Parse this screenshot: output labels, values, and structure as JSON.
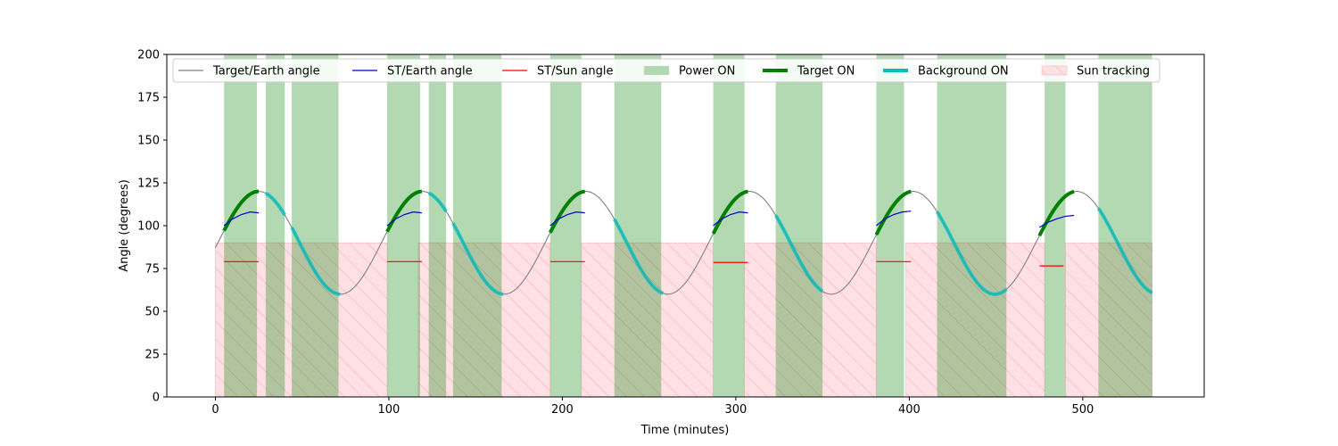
{
  "chart_data": {
    "type": "line",
    "title": "",
    "xlabel": "Time (minutes)",
    "ylabel": "Angle (degrees)",
    "xlim": [
      -28,
      570
    ],
    "ylim": [
      0,
      200
    ],
    "x_ticks": [
      0,
      100,
      200,
      300,
      400,
      500
    ],
    "y_ticks": [
      0,
      25,
      50,
      75,
      100,
      125,
      150,
      175,
      200
    ],
    "legend_position": "top",
    "grid": false,
    "legend": [
      {
        "label": "Target/Earth angle",
        "kind": "line",
        "color": "#808080"
      },
      {
        "label": "ST/Earth angle",
        "kind": "line",
        "color": "#0000cc"
      },
      {
        "label": "ST/Sun angle",
        "kind": "line",
        "color": "#ff0000"
      },
      {
        "label": "Power ON",
        "kind": "patch",
        "color": "#b2d8b2"
      },
      {
        "label": "Target ON",
        "kind": "thick-line",
        "color": "#008000"
      },
      {
        "label": "Background ON",
        "kind": "thick-line",
        "color": "#00bfbf"
      },
      {
        "label": "Sun tracking",
        "kind": "hatch",
        "color": "#ffe0e4"
      }
    ],
    "target_earth_angle": {
      "name": "Target/Earth angle",
      "model": "sinusoid",
      "mean": 90,
      "amplitude": 30,
      "period_min": 94.3,
      "min_at_min": [
        72,
        166,
        260,
        354,
        448,
        543
      ],
      "max_at_min": [
        25,
        119,
        213,
        307,
        401,
        495
      ],
      "x_range": [
        0,
        540
      ]
    },
    "st_earth_angle": {
      "name": "ST/Earth angle",
      "segments": [
        {
          "x": [
            5,
            10,
            15,
            20,
            25
          ],
          "y": [
            100,
            104,
            106.5,
            108,
            107.5
          ]
        },
        {
          "x": [
            99,
            104,
            109,
            114,
            119
          ],
          "y": [
            100,
            104,
            106.5,
            108,
            107.5
          ]
        },
        {
          "x": [
            193,
            198,
            203,
            208,
            213
          ],
          "y": [
            100,
            104,
            106.5,
            108,
            107.5
          ]
        },
        {
          "x": [
            287,
            292,
            297,
            302,
            307
          ],
          "y": [
            100,
            104,
            106.5,
            108,
            107.5
          ]
        },
        {
          "x": [
            381,
            386,
            391,
            396,
            401
          ],
          "y": [
            100,
            104,
            106.5,
            108,
            108.5
          ]
        },
        {
          "x": [
            475,
            480,
            485,
            490,
            495
          ],
          "y": [
            99,
            102,
            104,
            105.5,
            106
          ]
        }
      ]
    },
    "st_sun_angle": {
      "name": "ST/Sun angle",
      "segments": [
        {
          "x": [
            5,
            25
          ],
          "y": [
            79,
            79
          ]
        },
        {
          "x": [
            99,
            119
          ],
          "y": [
            79,
            79
          ]
        },
        {
          "x": [
            193,
            213
          ],
          "y": [
            79,
            79
          ]
        },
        {
          "x": [
            287,
            307
          ],
          "y": [
            78.5,
            78.5
          ]
        },
        {
          "x": [
            381,
            401
          ],
          "y": [
            79,
            79
          ]
        },
        {
          "x": [
            475,
            489
          ],
          "y": [
            76.5,
            76.5
          ]
        }
      ]
    },
    "power_on": [
      [
        5,
        24
      ],
      [
        29,
        40
      ],
      [
        44,
        71
      ],
      [
        99,
        118
      ],
      [
        123,
        133
      ],
      [
        137,
        165
      ],
      [
        193,
        211
      ],
      [
        230,
        257
      ],
      [
        287,
        305
      ],
      [
        323,
        350
      ],
      [
        381,
        397
      ],
      [
        416,
        456
      ],
      [
        478,
        490
      ],
      [
        509,
        540
      ]
    ],
    "target_on": [
      [
        5,
        25
      ],
      [
        99,
        119
      ],
      [
        193,
        213
      ],
      [
        287,
        307
      ],
      [
        381,
        401
      ],
      [
        475,
        495
      ]
    ],
    "background_on": [
      [
        29,
        40
      ],
      [
        44,
        72
      ],
      [
        123,
        133
      ],
      [
        137,
        166
      ],
      [
        230,
        258
      ],
      [
        323,
        350
      ],
      [
        416,
        456
      ],
      [
        509,
        540
      ]
    ],
    "sun_tracking": [
      [
        0,
        99
      ],
      [
        117,
        193
      ],
      [
        211,
        287
      ],
      [
        305,
        381
      ],
      [
        398,
        478
      ],
      [
        490,
        540
      ]
    ],
    "sun_tracking_level": 90
  }
}
